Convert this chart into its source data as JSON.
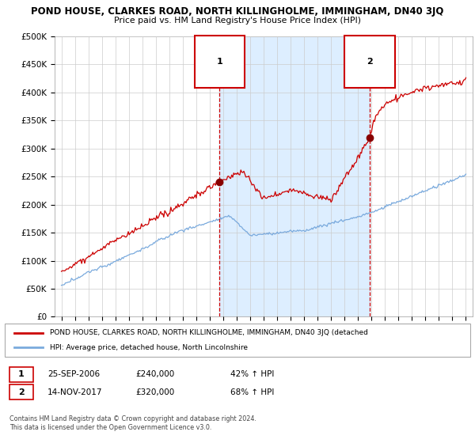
{
  "title": "POND HOUSE, CLARKES ROAD, NORTH KILLINGHOLME, IMMINGHAM, DN40 3JQ",
  "subtitle": "Price paid vs. HM Land Registry's House Price Index (HPI)",
  "sale1_date": "25-SEP-2006",
  "sale1_price": 240000,
  "sale1_label": "42% ↑ HPI",
  "sale2_date": "14-NOV-2017",
  "sale2_price": 320000,
  "sale2_label": "68% ↑ HPI",
  "sale1_x": 2006.73,
  "sale2_x": 2017.87,
  "red_line_color": "#cc0000",
  "blue_line_color": "#7aaadd",
  "shade_color": "#ddeeff",
  "dashed_line_color": "#cc0000",
  "ylim_min": 0,
  "ylim_max": 500000,
  "xlim_min": 1994.5,
  "xlim_max": 2025.5,
  "legend_line1": "POND HOUSE, CLARKES ROAD, NORTH KILLINGHOLME, IMMINGHAM, DN40 3JQ (detached",
  "legend_line2": "HPI: Average price, detached house, North Lincolnshire",
  "footnote": "Contains HM Land Registry data © Crown copyright and database right 2024.\nThis data is licensed under the Open Government Licence v3.0.",
  "yticks": [
    0,
    50000,
    100000,
    150000,
    200000,
    250000,
    300000,
    350000,
    400000,
    450000,
    500000
  ],
  "ytick_labels": [
    "£0",
    "£50K",
    "£100K",
    "£150K",
    "£200K",
    "£250K",
    "£300K",
    "£350K",
    "£400K",
    "£450K",
    "£500K"
  ]
}
